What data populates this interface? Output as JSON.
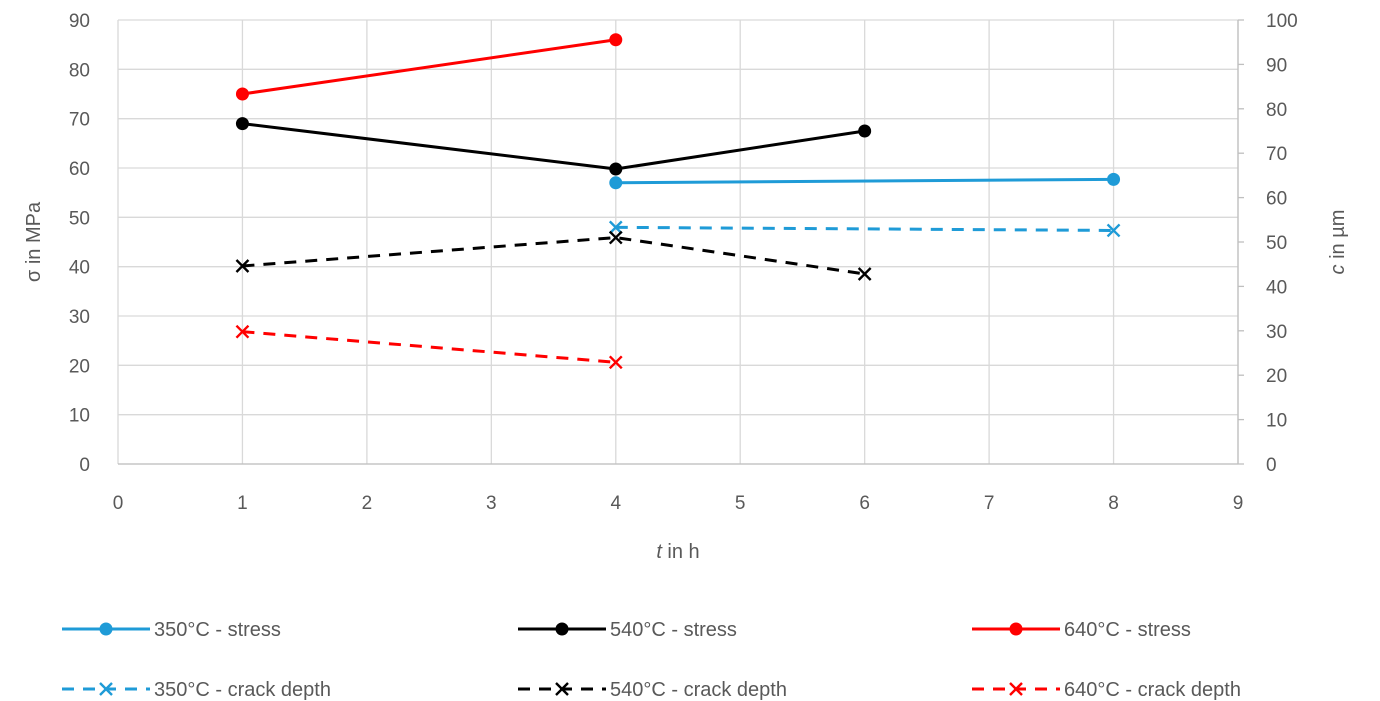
{
  "chart_data": {
    "type": "line",
    "x_axis": {
      "label_italic": "t",
      "label_rest": " in h",
      "min": 0,
      "max": 9,
      "ticks": [
        "0",
        "1",
        "2",
        "3",
        "4",
        "5",
        "6",
        "7",
        "8",
        "9"
      ]
    },
    "y_axis_left": {
      "label": "σ in MPa",
      "min": 0,
      "max": 90,
      "ticks": [
        "0",
        "10",
        "20",
        "30",
        "40",
        "50",
        "60",
        "70",
        "80",
        "90"
      ]
    },
    "y_axis_right": {
      "label_italic": "c",
      "label_rest": " in µm",
      "min": 0,
      "max": 100,
      "ticks": [
        "0",
        "10",
        "20",
        "30",
        "40",
        "50",
        "60",
        "70",
        "80",
        "90",
        "100"
      ]
    },
    "grid": true,
    "legend_position": "bottom",
    "series": [
      {
        "name": "350°C - stress",
        "axis": "left",
        "style": "solid",
        "marker": "circle",
        "color": "#1f9bd7",
        "points": [
          {
            "x": 4,
            "y": 57
          },
          {
            "x": 8,
            "y": 57.7
          }
        ]
      },
      {
        "name": "540°C - stress",
        "axis": "left",
        "style": "solid",
        "marker": "circle",
        "color": "#000000",
        "points": [
          {
            "x": 1,
            "y": 69
          },
          {
            "x": 4,
            "y": 59.8
          },
          {
            "x": 6,
            "y": 67.5
          }
        ]
      },
      {
        "name": "640°C - stress",
        "axis": "left",
        "style": "solid",
        "marker": "circle",
        "color": "#ff0000",
        "points": [
          {
            "x": 1,
            "y": 75
          },
          {
            "x": 4,
            "y": 86
          }
        ]
      },
      {
        "name": "350°C - crack depth",
        "axis": "right",
        "style": "dashed",
        "marker": "x",
        "color": "#1f9bd7",
        "points": [
          {
            "x": 4,
            "y": 53.3
          },
          {
            "x": 8,
            "y": 52.6
          }
        ]
      },
      {
        "name": "540°C - crack depth",
        "axis": "right",
        "style": "dashed",
        "marker": "x",
        "color": "#000000",
        "points": [
          {
            "x": 1,
            "y": 44.6
          },
          {
            "x": 4,
            "y": 51
          },
          {
            "x": 6,
            "y": 42.8
          }
        ]
      },
      {
        "name": "640°C - crack depth",
        "axis": "right",
        "style": "dashed",
        "marker": "x",
        "color": "#ff0000",
        "points": [
          {
            "x": 1,
            "y": 29.8
          },
          {
            "x": 4,
            "y": 22.9
          }
        ]
      }
    ]
  }
}
